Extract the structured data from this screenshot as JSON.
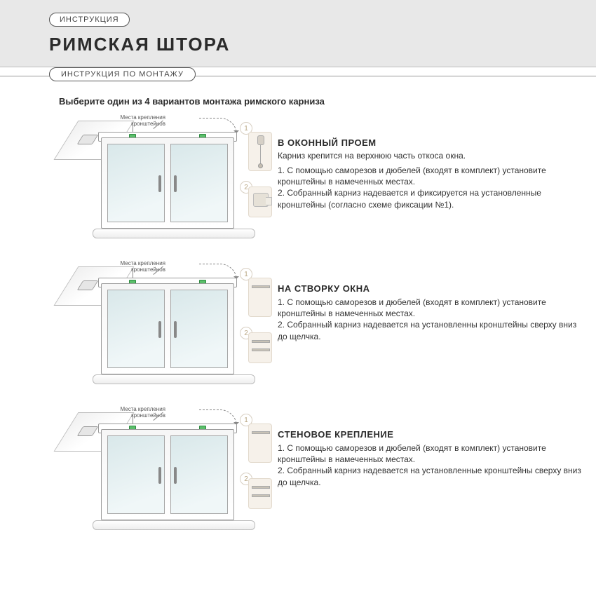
{
  "colors": {
    "header_bg": "#e8e8e8",
    "text": "#2b2b2b",
    "accent_tan": "#f6f1ea",
    "bracket_green": "#5abf6a"
  },
  "pill_top": "ИНСТРУКЦИЯ",
  "title": "РИМСКАЯ ШТОРА",
  "pill_sub": "ИНСТРУКЦИЯ ПО МОНТАЖУ",
  "intro": "Выберите один из 4 вариантов монтажа римского карниза",
  "diag_label": "Места крепления\nкронштейнов",
  "circ1": "1",
  "circ2": "2",
  "sections": [
    {
      "title": "В ОКОННЫЙ ПРОЕМ",
      "sub": "Карниз крепится на верхнюю часть откоса окна.",
      "body": "1. С помощью саморезов и дюбелей (входят в комплект) установите кронштейны в намеченных местах.\n2. Собранный карниз надевается и фиксируется на установленные кронштейны (согласно схеме фиксации №1)."
    },
    {
      "title": "НА СТВОРКУ ОКНА",
      "sub": "",
      "body": "1. С помощью саморезов и дюбелей (входят в комплект) установите кронштейны в намеченных местах.\n2. Собранный карниз надевается на установленны кронштейны сверху вниз до щелчка."
    },
    {
      "title": "СТЕНОВОЕ КРЕПЛЕНИЕ",
      "sub": "",
      "body": "1. С помощью саморезов и дюбелей (входят в комплект) установите кронштейны в намеченных местах.\n2. Собранный карниз надевается на установленные кронштейны сверху вниз до щелчка."
    }
  ]
}
